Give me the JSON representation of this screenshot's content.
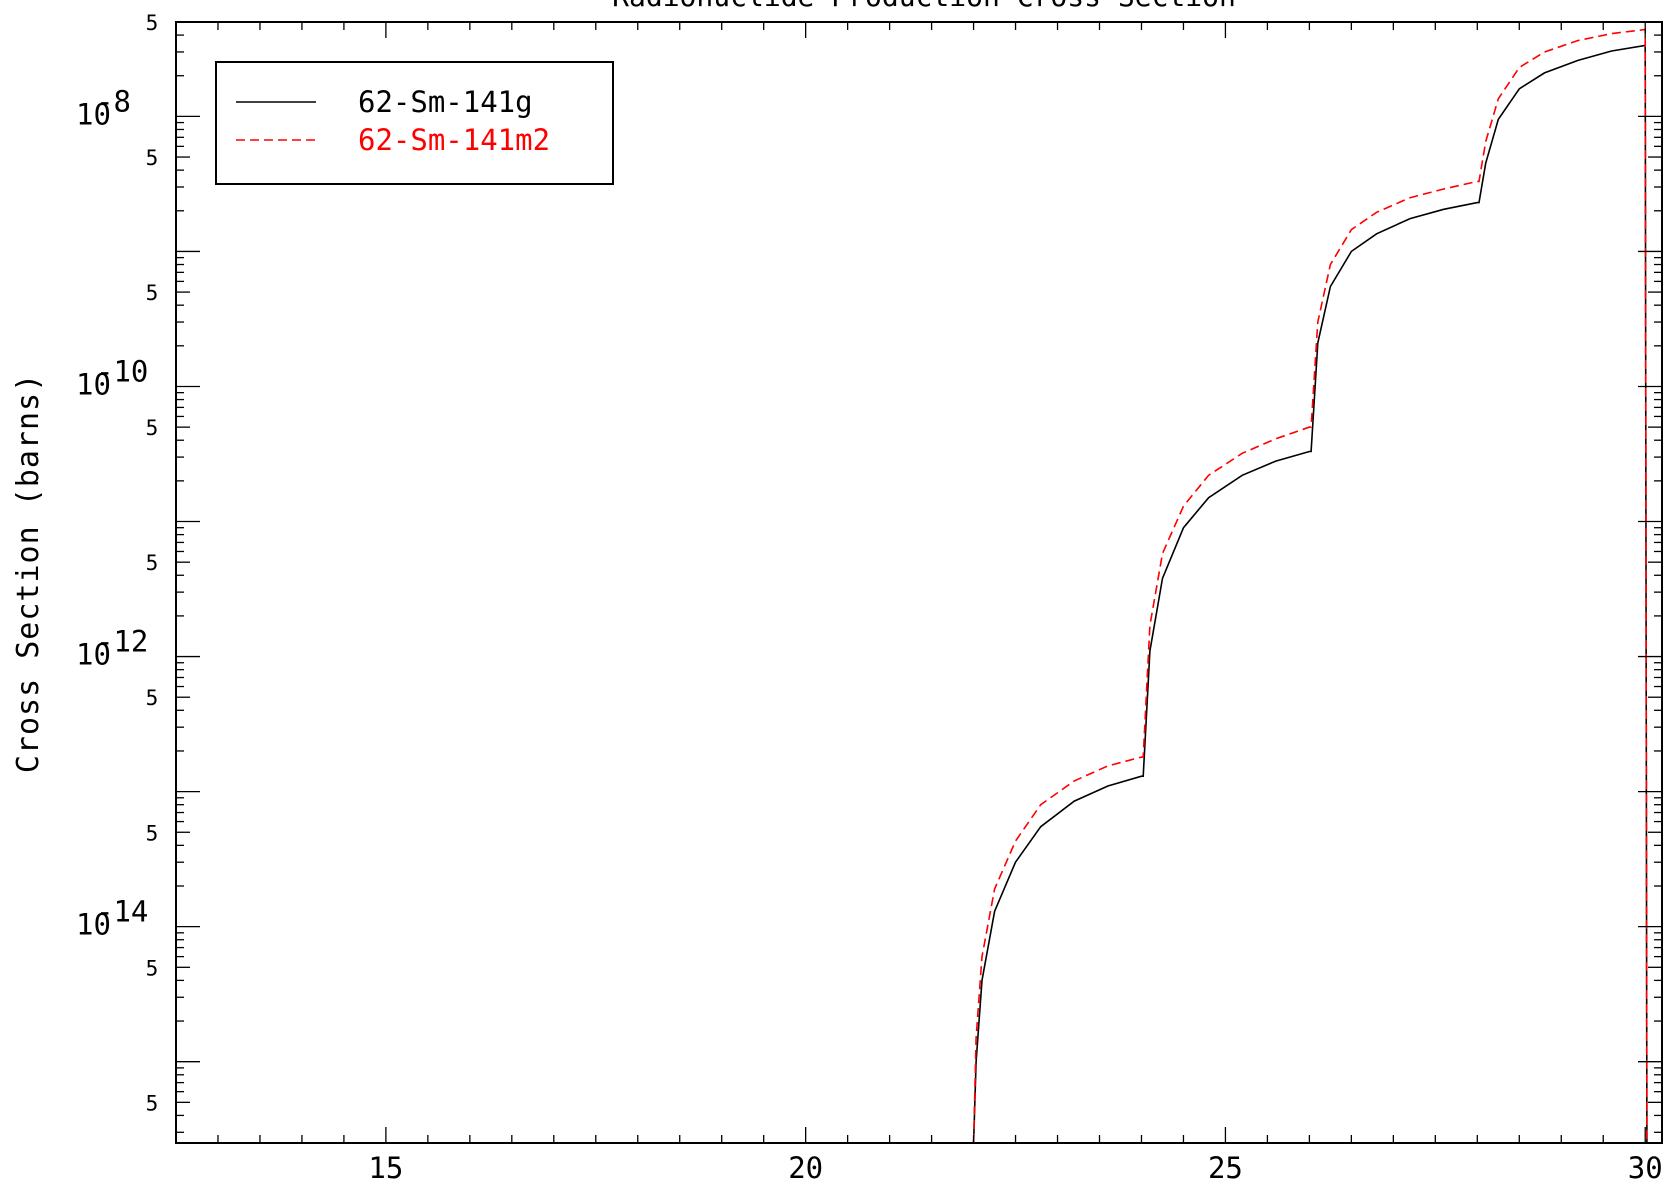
{
  "chart_data": {
    "type": "line",
    "title": "Radionuclide Production Cross Section",
    "xlabel": "",
    "ylabel": "Cross Section (barns)",
    "xlim": [
      12.5,
      30.2
    ],
    "ylim": [
      2.5e-16,
      5e-08
    ],
    "yscale": "log",
    "x_ticks": [
      15,
      20,
      25,
      30
    ],
    "x_tick_labels": [
      "15",
      "20",
      "25",
      "30"
    ],
    "y_major_ticks": [
      {
        "value": 1e-08,
        "base": "10",
        "exp": "-8"
      },
      {
        "value": 1e-10,
        "base": "10",
        "exp": "-10"
      },
      {
        "value": 1e-12,
        "base": "10",
        "exp": "-12"
      },
      {
        "value": 1e-14,
        "base": "10",
        "exp": "-14"
      }
    ],
    "y_minor_label": "5",
    "y_minor_label_values": [
      5e-08,
      5e-09,
      5e-10,
      5e-11,
      5e-12,
      5e-13,
      5e-14,
      5e-15,
      5e-16
    ],
    "grid": false,
    "legend_position": "top-left",
    "series": [
      {
        "name": "62-Sm-141g",
        "color": "#000000",
        "style": "solid",
        "x": [
          22.0,
          22.03,
          22.1,
          22.25,
          22.5,
          22.8,
          23.2,
          23.6,
          24.0,
          24.02,
          24.1,
          24.25,
          24.5,
          24.8,
          25.2,
          25.6,
          26.0,
          26.02,
          26.1,
          26.25,
          26.5,
          26.8,
          27.2,
          27.6,
          28.0,
          28.02,
          28.1,
          28.25,
          28.5,
          28.8,
          29.2,
          29.6,
          30.0,
          30.02,
          30.05
        ],
        "y": [
          1e-16,
          1e-15,
          4e-15,
          1.3e-14,
          3e-14,
          5.5e-14,
          8.5e-14,
          1.1e-13,
          1.3e-13,
          1.3e-13,
          1.1e-12,
          3.8e-12,
          9e-12,
          1.5e-11,
          2.2e-11,
          2.8e-11,
          3.3e-11,
          3.3e-11,
          2.1e-10,
          5.5e-10,
          1e-09,
          1.35e-09,
          1.75e-09,
          2.05e-09,
          2.3e-09,
          2.3e-09,
          4.5e-09,
          9.5e-09,
          1.6e-08,
          2.1e-08,
          2.6e-08,
          3.05e-08,
          3.35e-08,
          1e-16,
          1e-16
        ]
      },
      {
        "name": "62-Sm-141m2",
        "color": "#ff0000",
        "style": "dashed",
        "x": [
          22.0,
          22.03,
          22.1,
          22.25,
          22.5,
          22.8,
          23.2,
          23.6,
          24.0,
          24.02,
          24.1,
          24.25,
          24.5,
          24.8,
          25.2,
          25.6,
          26.0,
          26.02,
          26.1,
          26.25,
          26.5,
          26.8,
          27.2,
          27.6,
          28.0,
          28.02,
          28.1,
          28.25,
          28.5,
          28.8,
          29.2,
          29.6,
          30.0,
          30.02,
          30.05
        ],
        "y": [
          1e-16,
          1.5e-15,
          6e-15,
          1.9e-14,
          4.3e-14,
          8e-14,
          1.2e-13,
          1.55e-13,
          1.8e-13,
          1.8e-13,
          1.7e-12,
          5.8e-12,
          1.3e-11,
          2.2e-11,
          3.2e-11,
          4.1e-11,
          5e-11,
          5e-11,
          3e-10,
          8e-10,
          1.45e-09,
          1.95e-09,
          2.5e-09,
          2.9e-09,
          3.3e-09,
          3.3e-09,
          6.5e-09,
          1.35e-08,
          2.3e-08,
          3e-08,
          3.65e-08,
          4.1e-08,
          4.4e-08,
          1e-16,
          1e-16
        ]
      }
    ]
  }
}
